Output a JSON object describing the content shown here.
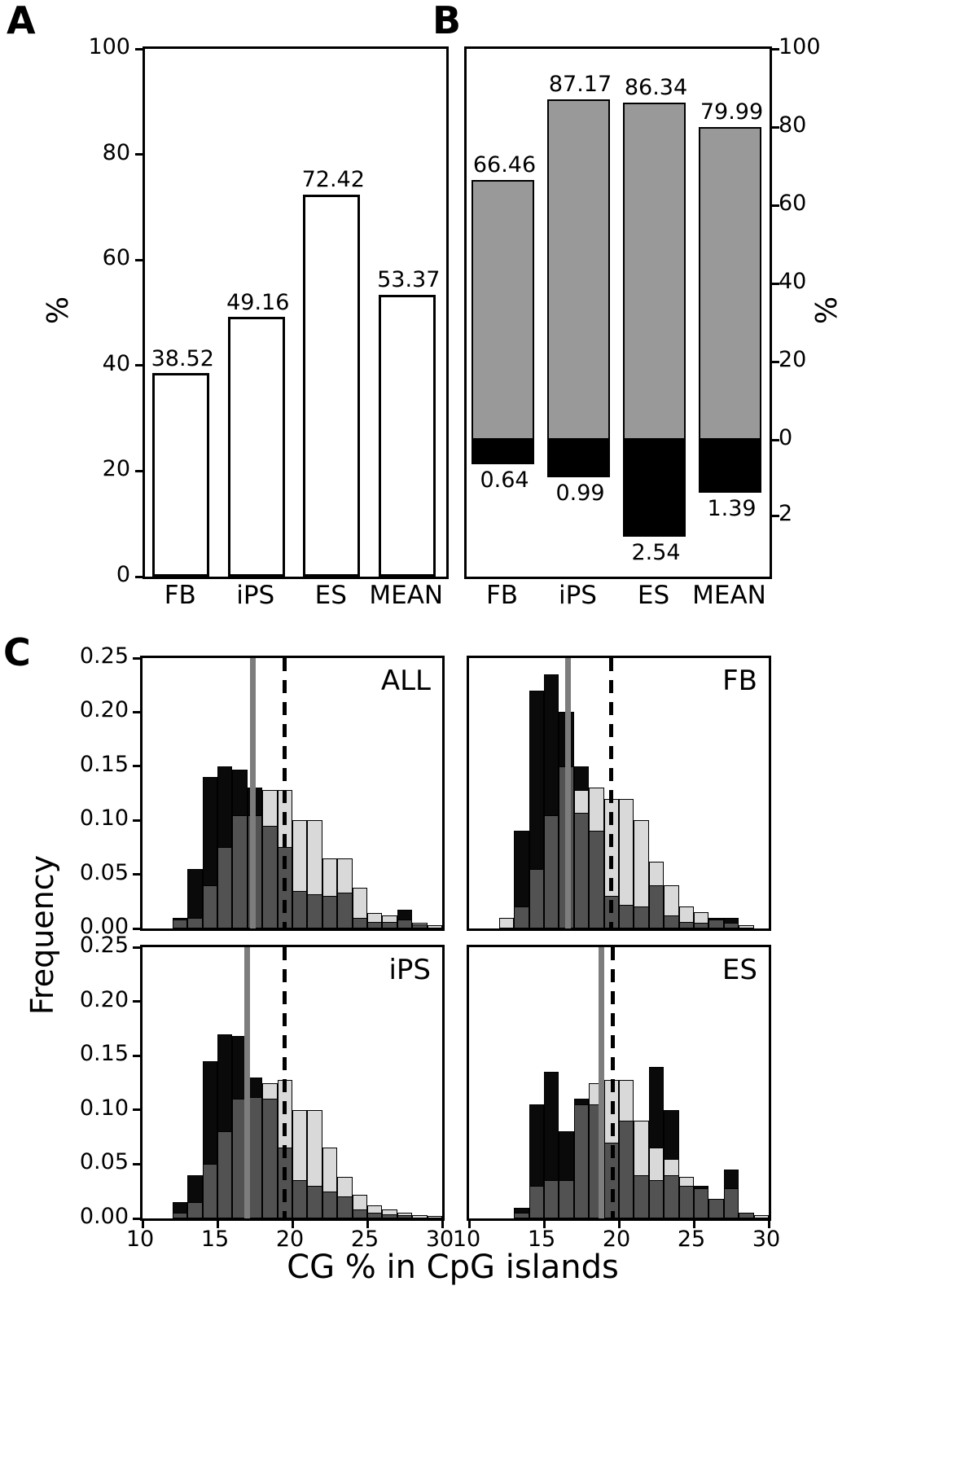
{
  "labels": {
    "A": "A",
    "B": "B",
    "C": "C"
  },
  "colors": {
    "background": "#ffffff",
    "axis": "#000000",
    "panelA_bar_fill": "#ffffff",
    "panelA_bar_edge": "#000000",
    "panelB_up": "#999999",
    "panelB_down": "#000000",
    "hist_black": "#0a0a0a",
    "hist_dark": "#525252",
    "hist_light": "#d9d9d9",
    "solid_line": "#7d7d7d",
    "dashed_line": "#000000"
  },
  "chart_data": [
    {
      "id": "panel-A",
      "type": "bar",
      "categories": [
        "FB",
        "iPS",
        "ES",
        "MEAN"
      ],
      "values": [
        38.52,
        49.16,
        72.42,
        53.37
      ],
      "bar_labels": [
        "38.52",
        "49.16",
        "72.42",
        "53.37"
      ],
      "ylabel": "%",
      "ylim": [
        0,
        100
      ],
      "yticks": [
        "0",
        "20",
        "40",
        "60",
        "80",
        "100"
      ],
      "grid": false,
      "legend": "none"
    },
    {
      "id": "panel-B",
      "type": "diverging-bar",
      "categories": [
        "FB",
        "iPS",
        "ES",
        "MEAN"
      ],
      "series": [
        {
          "name": "upper",
          "color_key": "panelB_up",
          "values": [
            66.46,
            87.17,
            86.34,
            79.99
          ],
          "labels": [
            "66.46",
            "87.17",
            "86.34",
            "79.99"
          ]
        },
        {
          "name": "lower",
          "color_key": "panelB_down",
          "values": [
            0.64,
            0.99,
            2.54,
            1.39
          ],
          "labels": [
            "0.64",
            "0.99",
            "2.54",
            "1.39"
          ]
        }
      ],
      "ylabel": "%",
      "upper_ylim": [
        0,
        100
      ],
      "upper_yticks": [
        "100",
        "80",
        "60",
        "40",
        "20",
        "0"
      ],
      "lower_ylim": [
        0,
        3.6
      ],
      "lower_yticks": [
        "2"
      ],
      "axis_side": "right"
    },
    {
      "id": "panel-C",
      "type": "histogram-grid",
      "xlabel": "CG % in CpG islands",
      "ylabel": "Frequency",
      "xlim": [
        10,
        30
      ],
      "ylim": [
        0,
        0.25
      ],
      "xticks": [
        "10",
        "15",
        "20",
        "25",
        "30"
      ],
      "yticks": [
        "0.00",
        "0.05",
        "0.10",
        "0.15",
        "0.20",
        "0.25"
      ],
      "bin_start": 12,
      "bin_width": 1,
      "panels": [
        {
          "label": "ALL",
          "solid_x": 17.35,
          "dashed_x": 19.5,
          "black": [
            0.01,
            0.055,
            0.14,
            0.15,
            0.147,
            0.13,
            0,
            0,
            0,
            0.042,
            0.035,
            0.046,
            0.008,
            0,
            0.01,
            0.017,
            0,
            0
          ],
          "dark": [
            0.008,
            0.01,
            0.04,
            0.075,
            0.105,
            0.105,
            0.095,
            0.075,
            0.035,
            0.032,
            0.03,
            0.033,
            0.01,
            0.006,
            0.006,
            0.008,
            0.004,
            0
          ],
          "light": [
            0,
            0,
            0.008,
            0.02,
            0.06,
            0.105,
            0.128,
            0.128,
            0.1,
            0.1,
            0.065,
            0.065,
            0.038,
            0.014,
            0.012,
            0.008,
            0.005,
            0.003
          ]
        },
        {
          "label": "FB",
          "solid_x": 16.6,
          "dashed_x": 19.5,
          "black": [
            0,
            0.09,
            0.22,
            0.235,
            0.2,
            0.15,
            0,
            0,
            0,
            0.02,
            0.04,
            0,
            0,
            0,
            0.01,
            0.01,
            0,
            0
          ],
          "dark": [
            0,
            0.02,
            0.055,
            0.105,
            0.15,
            0.107,
            0.09,
            0.03,
            0.022,
            0.02,
            0.04,
            0.012,
            0.006,
            0.005,
            0.008,
            0.005,
            0,
            0
          ],
          "light": [
            0.01,
            0.012,
            0.02,
            0.035,
            0.06,
            0.128,
            0.13,
            0.12,
            0.12,
            0.1,
            0.062,
            0.04,
            0.02,
            0.015,
            0.008,
            0.005,
            0.003,
            0
          ]
        },
        {
          "label": "iPS",
          "solid_x": 17.0,
          "dashed_x": 19.5,
          "black": [
            0.015,
            0.04,
            0.145,
            0.17,
            0.168,
            0.13,
            0.11,
            0,
            0,
            0.033,
            0.03,
            0.022,
            0,
            0,
            0.005,
            0,
            0,
            0
          ],
          "dark": [
            0.005,
            0.015,
            0.05,
            0.08,
            0.11,
            0.112,
            0.11,
            0.065,
            0.035,
            0.03,
            0.025,
            0.02,
            0.008,
            0.005,
            0.004,
            0.003,
            0,
            0
          ],
          "light": [
            0,
            0,
            0.008,
            0.02,
            0.06,
            0.11,
            0.125,
            0.128,
            0.1,
            0.1,
            0.065,
            0.038,
            0.022,
            0.012,
            0.008,
            0.005,
            0.003,
            0.002
          ]
        },
        {
          "label": "ES",
          "solid_x": 18.85,
          "dashed_x": 19.6,
          "black": [
            0,
            0.01,
            0.105,
            0.135,
            0.08,
            0.11,
            0.11,
            0,
            0,
            0.04,
            0.14,
            0.1,
            0,
            0.03,
            0.018,
            0.045,
            0,
            0
          ],
          "dark": [
            0,
            0.005,
            0.03,
            0.035,
            0.035,
            0.105,
            0.105,
            0.07,
            0.09,
            0.04,
            0.035,
            0.04,
            0.03,
            0.028,
            0.018,
            0.028,
            0.005,
            0
          ],
          "light": [
            0,
            0,
            0.005,
            0.012,
            0.03,
            0.06,
            0.125,
            0.128,
            0.128,
            0.09,
            0.065,
            0.055,
            0.038,
            0.02,
            0.012,
            0.008,
            0.005,
            0.003
          ]
        }
      ]
    }
  ]
}
